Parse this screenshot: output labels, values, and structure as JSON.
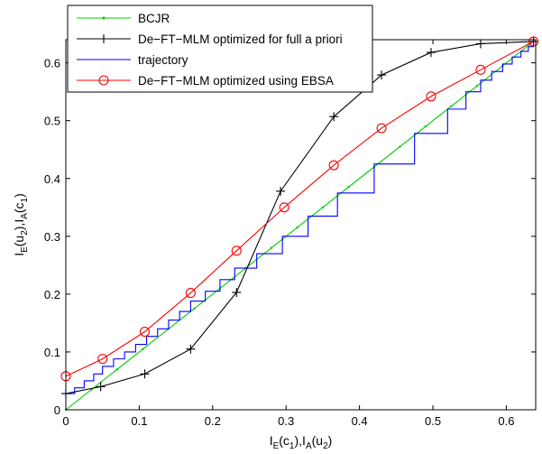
{
  "chart_data": {
    "type": "line",
    "xlabel_main": "I",
    "xlabel_parts": [
      {
        "t": "I",
        "sub": false
      },
      {
        "t": "E",
        "sub": true
      },
      {
        "t": "(c",
        "sub": false
      },
      {
        "t": "1",
        "sub": true
      },
      {
        "t": "),I",
        "sub": false
      },
      {
        "t": "A",
        "sub": true
      },
      {
        "t": "(u",
        "sub": false
      },
      {
        "t": "2",
        "sub": true
      },
      {
        "t": ")",
        "sub": false
      }
    ],
    "ylabel_parts": [
      {
        "t": "I",
        "sub": false
      },
      {
        "t": "E",
        "sub": true
      },
      {
        "t": "(u",
        "sub": false
      },
      {
        "t": "2",
        "sub": true
      },
      {
        "t": "),I",
        "sub": false
      },
      {
        "t": "A",
        "sub": true
      },
      {
        "t": "(c",
        "sub": false
      },
      {
        "t": "1",
        "sub": true
      },
      {
        "t": ")",
        "sub": false
      }
    ],
    "xlim": [
      0,
      0.64
    ],
    "ylim": [
      0,
      0.64
    ],
    "xticks": [
      0,
      0.1,
      0.2,
      0.3,
      0.4,
      0.5,
      0.6
    ],
    "yticks": [
      0,
      0.1,
      0.2,
      0.3,
      0.4,
      0.5,
      0.6
    ],
    "xtick_labels": [
      "0",
      "0.1",
      "0.2",
      "0.3",
      "0.4",
      "0.5",
      "0.6"
    ],
    "ytick_labels": [
      "0",
      "0.1",
      "0.2",
      "0.3",
      "0.4",
      "0.5",
      "0.6"
    ],
    "grid": false,
    "legend_position": "top-left",
    "series": [
      {
        "name": "BCJR",
        "color": "#00cc00",
        "marker": "dot",
        "x": [
          0,
          0.637
        ],
        "y": [
          0,
          0.637
        ],
        "marker_x": [
          0.0,
          0.035,
          0.07,
          0.105,
          0.14,
          0.175,
          0.21,
          0.245,
          0.28,
          0.315,
          0.35,
          0.385,
          0.42,
          0.455,
          0.49,
          0.525,
          0.56,
          0.595,
          0.63
        ]
      },
      {
        "name": "De−FT−MLM optimized for full a priori",
        "color": "#000000",
        "marker": "plus",
        "x": [
          0.0,
          0.0475,
          0.1075,
          0.17,
          0.2325,
          0.2925,
          0.365,
          0.43,
          0.4975,
          0.565,
          0.637
        ],
        "y": [
          0.028,
          0.04,
          0.062,
          0.105,
          0.203,
          0.378,
          0.507,
          0.579,
          0.618,
          0.633,
          0.637
        ]
      },
      {
        "name": "trajectory",
        "color": "#0000ff",
        "marker": "none",
        "stairs": true,
        "x": [
          0.0,
          0.012,
          0.025,
          0.038,
          0.05,
          0.065,
          0.08,
          0.095,
          0.11,
          0.125,
          0.14,
          0.155,
          0.17,
          0.19,
          0.21,
          0.23,
          0.26,
          0.295,
          0.33,
          0.37,
          0.42,
          0.475,
          0.52,
          0.545,
          0.565,
          0.58,
          0.595,
          0.608,
          0.62,
          0.63,
          0.637
        ],
        "y": [
          0.028,
          0.038,
          0.05,
          0.062,
          0.075,
          0.088,
          0.1,
          0.113,
          0.127,
          0.14,
          0.155,
          0.17,
          0.188,
          0.205,
          0.225,
          0.245,
          0.27,
          0.3,
          0.335,
          0.375,
          0.425,
          0.478,
          0.52,
          0.55,
          0.57,
          0.585,
          0.598,
          0.61,
          0.62,
          0.628,
          0.637
        ]
      },
      {
        "name": "De−FT−MLM optimized using EBSA",
        "color": "#ff0000",
        "marker": "circle",
        "x": [
          0.0,
          0.05,
          0.1075,
          0.17,
          0.2325,
          0.2975,
          0.365,
          0.43,
          0.4975,
          0.565,
          0.637
        ],
        "y": [
          0.058,
          0.088,
          0.135,
          0.202,
          0.275,
          0.35,
          0.423,
          0.487,
          0.542,
          0.588,
          0.637
        ]
      }
    ]
  }
}
